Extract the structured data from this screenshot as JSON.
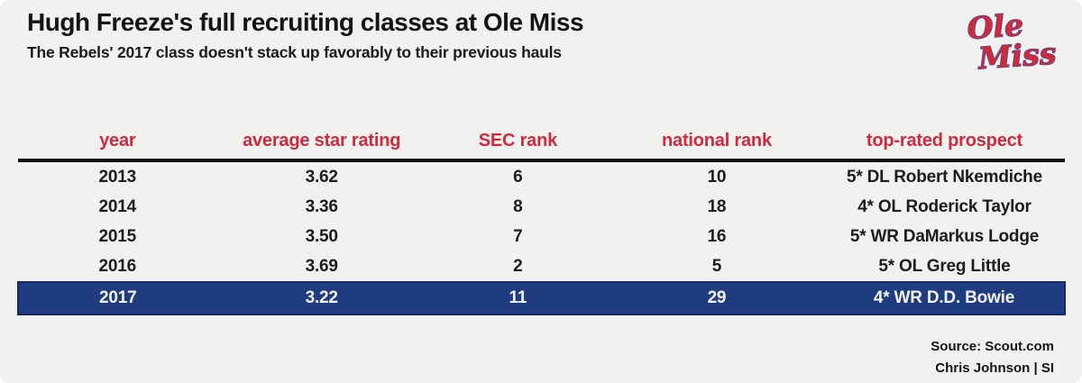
{
  "header": {
    "title": "Hugh Freeze's full recruiting classes at Ole Miss",
    "subtitle": "The Rebels' 2017 class doesn't stack up favorably to their previous hauls"
  },
  "logo": {
    "line1": "Ole",
    "line2": "Miss"
  },
  "colors": {
    "background": "#f1f1f0",
    "accent_red": "#d02a3c",
    "highlight_navy": "#203c80",
    "highlight_border": "#17295e"
  },
  "chart_data": {
    "type": "table",
    "columns": [
      "year",
      "average star rating",
      "SEC rank",
      "national rank",
      "top-rated prospect"
    ],
    "rows": [
      [
        "2013",
        "3.62",
        "6",
        "10",
        "5* DL Robert Nkemdiche"
      ],
      [
        "2014",
        "3.36",
        "8",
        "18",
        "4* OL Roderick Taylor"
      ],
      [
        "2015",
        "3.50",
        "7",
        "16",
        "5* WR DaMarkus Lodge"
      ],
      [
        "2016",
        "3.69",
        "2",
        "5",
        "5* OL Greg Little"
      ],
      [
        "2017",
        "3.22",
        "11",
        "29",
        "4* WR D.D. Bowie"
      ]
    ],
    "highlight_index": 4,
    "highlighted_year": "2017"
  },
  "footer": {
    "source": "Source: Scout.com",
    "credit": "Chris Johnson | SI"
  }
}
